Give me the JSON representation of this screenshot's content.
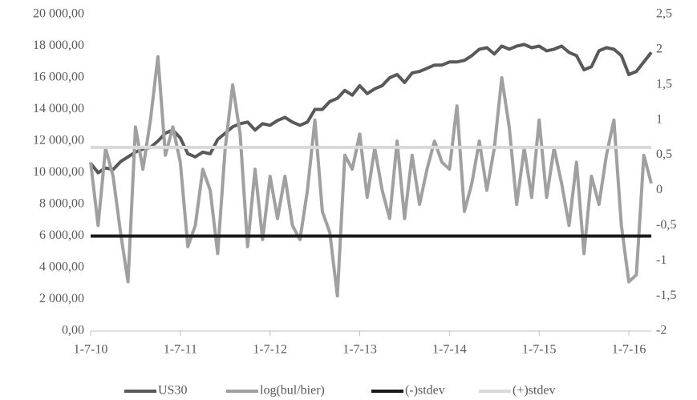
{
  "chart_data": {
    "type": "line",
    "categories": [
      "1-7-10",
      null,
      null,
      null,
      null,
      null,
      null,
      null,
      null,
      null,
      null,
      null,
      "1-7-11",
      null,
      null,
      null,
      null,
      null,
      null,
      null,
      null,
      null,
      null,
      null,
      "1-7-12",
      null,
      null,
      null,
      null,
      null,
      null,
      null,
      null,
      null,
      null,
      null,
      "1-7-13",
      null,
      null,
      null,
      null,
      null,
      null,
      null,
      null,
      null,
      null,
      null,
      "1-7-14",
      null,
      null,
      null,
      null,
      null,
      null,
      null,
      null,
      null,
      null,
      null,
      "1-7-15",
      null,
      null,
      null,
      null,
      null,
      null,
      null,
      null,
      null,
      null,
      null,
      "1-7-16",
      null,
      null,
      null
    ],
    "ylim": [
      0,
      20000
    ],
    "yticks": [
      {
        "value": 0,
        "label": "0,00"
      },
      {
        "value": 2000,
        "label": "2 000,00"
      },
      {
        "value": 4000,
        "label": "4 000,00"
      },
      {
        "value": 6000,
        "label": "6 000,00"
      },
      {
        "value": 8000,
        "label": "8 000,00"
      },
      {
        "value": 10000,
        "label": "10 000,00"
      },
      {
        "value": 12000,
        "label": "12 000,00"
      },
      {
        "value": 14000,
        "label": "14 000,00"
      },
      {
        "value": 16000,
        "label": "16 000,00"
      },
      {
        "value": 18000,
        "label": "18 000,00"
      },
      {
        "value": 20000,
        "label": "20 000,00"
      }
    ],
    "y2lim": [
      -2,
      2.5
    ],
    "y2ticks": [
      -2,
      {
        "value": -1.5,
        "label": "-1,5"
      },
      -1,
      {
        "value": -0.5,
        "label": "-0,5"
      },
      0,
      {
        "value": 0.5,
        "label": "0,5"
      },
      1,
      {
        "value": 1.5,
        "label": "1,5"
      },
      2,
      {
        "value": 2.5,
        "label": "2,5"
      }
    ],
    "legend": "bottom",
    "series": [
      {
        "name": "US30",
        "color": "#595959",
        "axis": "y",
        "values": [
          10600,
          10000,
          10300,
          10200,
          10700,
          11000,
          11300,
          11500,
          11600,
          12000,
          12500,
          12700,
          12200,
          11200,
          11000,
          11300,
          11200,
          12100,
          12500,
          12900,
          13100,
          13200,
          12700,
          13100,
          13000,
          13300,
          13500,
          13200,
          13000,
          13200,
          14000,
          14000,
          14500,
          14700,
          15200,
          14900,
          15500,
          15000,
          15300,
          15500,
          16000,
          16200,
          15700,
          16300,
          16400,
          16600,
          16800,
          16800,
          17000,
          17000,
          17100,
          17400,
          17800,
          17900,
          17500,
          18000,
          17800,
          18000,
          18100,
          17900,
          18000,
          17700,
          17800,
          18000,
          17600,
          17400,
          16500,
          16700,
          17700,
          17900,
          17800,
          17400,
          16200,
          16400,
          17000,
          17600
        ]
      },
      {
        "name": "log(bul/bier)",
        "color": "#a0a0a0",
        "axis": "y2",
        "values": [
          0.4,
          -0.5,
          0.6,
          0.2,
          -0.6,
          -1.3,
          0.9,
          0.3,
          1.0,
          1.9,
          0.5,
          0.9,
          0.4,
          -0.8,
          -0.5,
          0.3,
          0.0,
          -0.9,
          0.6,
          1.5,
          0.8,
          -0.8,
          0.3,
          -0.7,
          0.2,
          -0.4,
          0.2,
          -0.5,
          -0.7,
          0.0,
          1.0,
          -0.3,
          -0.6,
          -1.5,
          0.5,
          0.3,
          0.8,
          -0.1,
          0.6,
          0.0,
          -0.4,
          0.7,
          -0.4,
          0.5,
          -0.2,
          0.3,
          0.7,
          0.4,
          0.3,
          1.2,
          -0.3,
          0.1,
          0.7,
          0.0,
          0.6,
          1.6,
          0.9,
          -0.2,
          0.6,
          -0.1,
          1.0,
          -0.1,
          0.6,
          0.1,
          -0.5,
          0.4,
          -0.9,
          0.2,
          -0.2,
          0.5,
          1.0,
          -0.5,
          -1.3,
          -1.2,
          0.5,
          0.1
        ]
      },
      {
        "name": "(-)stdev",
        "color": "#1a1a1a",
        "axis": "y2",
        "values": [
          -0.65,
          -0.65,
          -0.65,
          -0.65,
          -0.65,
          -0.65,
          -0.65,
          -0.65,
          -0.65,
          -0.65,
          -0.65,
          -0.65,
          -0.65,
          -0.65,
          -0.65,
          -0.65,
          -0.65,
          -0.65,
          -0.65,
          -0.65,
          -0.65,
          -0.65,
          -0.65,
          -0.65,
          -0.65,
          -0.65,
          -0.65,
          -0.65,
          -0.65,
          -0.65,
          -0.65,
          -0.65,
          -0.65,
          -0.65,
          -0.65,
          -0.65,
          -0.65,
          -0.65,
          -0.65,
          -0.65,
          -0.65,
          -0.65,
          -0.65,
          -0.65,
          -0.65,
          -0.65,
          -0.65,
          -0.65,
          -0.65,
          -0.65,
          -0.65,
          -0.65,
          -0.65,
          -0.65,
          -0.65,
          -0.65,
          -0.65,
          -0.65,
          -0.65,
          -0.65,
          -0.65,
          -0.65,
          -0.65,
          -0.65,
          -0.65,
          -0.65,
          -0.65,
          -0.65,
          -0.65,
          -0.65,
          -0.65,
          -0.65,
          -0.65,
          -0.65,
          -0.65,
          -0.65
        ]
      },
      {
        "name": "(+)stdev",
        "color": "#d9d9d9",
        "axis": "y2",
        "values": [
          0.61,
          0.61,
          0.61,
          0.61,
          0.61,
          0.61,
          0.61,
          0.61,
          0.61,
          0.61,
          0.61,
          0.61,
          0.61,
          0.61,
          0.61,
          0.61,
          0.61,
          0.61,
          0.61,
          0.61,
          0.61,
          0.61,
          0.61,
          0.61,
          0.61,
          0.61,
          0.61,
          0.61,
          0.61,
          0.61,
          0.61,
          0.61,
          0.61,
          0.61,
          0.61,
          0.61,
          0.61,
          0.61,
          0.61,
          0.61,
          0.61,
          0.61,
          0.61,
          0.61,
          0.61,
          0.61,
          0.61,
          0.61,
          0.61,
          0.61,
          0.61,
          0.61,
          0.61,
          0.61,
          0.61,
          0.61,
          0.61,
          0.61,
          0.61,
          0.61,
          0.61,
          0.61,
          0.61,
          0.61,
          0.61,
          0.61,
          0.61,
          0.61,
          0.61,
          0.61,
          0.61,
          0.61,
          0.61,
          0.61,
          0.61,
          0.61
        ]
      }
    ]
  }
}
